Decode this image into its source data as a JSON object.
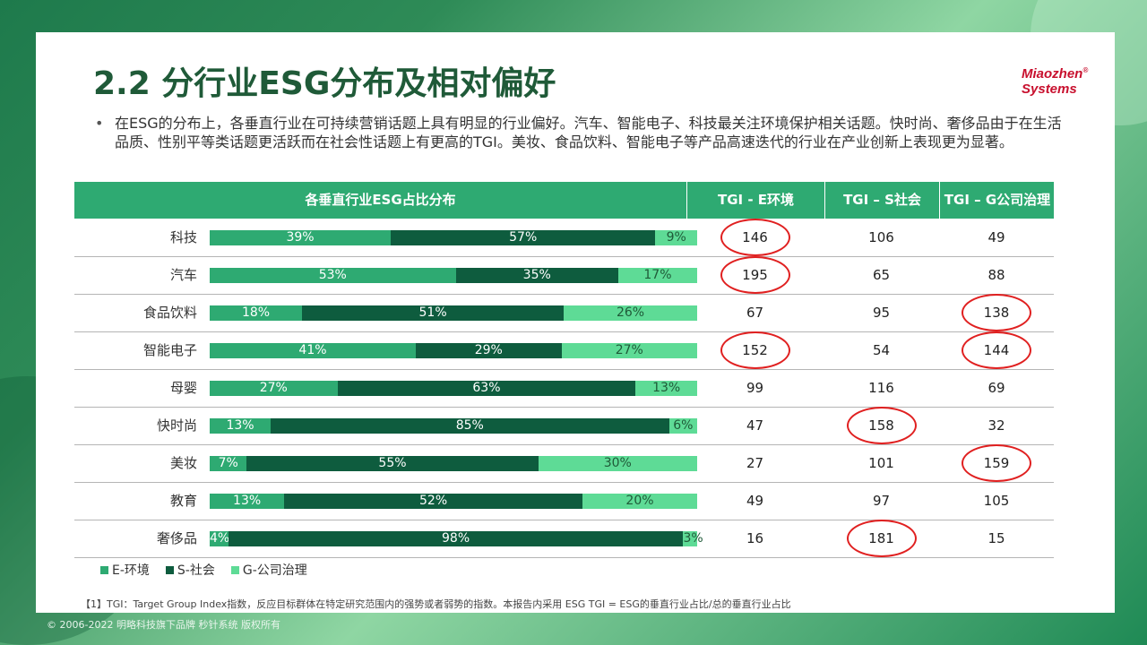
{
  "title": "2.2 分行业ESG分布及相对偏好",
  "logo": {
    "line1": "Miaozhen",
    "line2": "Systems",
    "mark": "®"
  },
  "bullet": "在ESG的分布上，各垂直行业在可持续营销话题上具有明显的行业偏好。汽车、智能电子、科技最关注环境保护相关话题。快时尚、奢侈品由于在生活品质、性别平等类话题更活跃而在社会性话题上有更高的TGI。美妆、食品饮料、智能电子等产品高速迭代的行业在产业创新上表现更为显著。",
  "headers": {
    "dist": "各垂直行业ESG占比分布",
    "tgi_e": "TGI - E环境",
    "tgi_s": "TGI – S社会",
    "tgi_g": "TGI – G公司治理"
  },
  "colors": {
    "e": "#2eaa72",
    "s": "#0e5c3e",
    "g": "#5edb96",
    "highlight": "#e02020"
  },
  "legend": [
    "E-环境",
    "S-社会",
    "G-公司治理"
  ],
  "chart_data": {
    "type": "bar",
    "orientation": "horizontal",
    "stacked": true,
    "percent_stacked": true,
    "categories": [
      "科技",
      "汽车",
      "食品饮料",
      "智能电子",
      "母婴",
      "快时尚",
      "美妆",
      "教育",
      "奢侈品"
    ],
    "series": [
      {
        "name": "E-环境",
        "values": [
          39,
          53,
          18,
          41,
          27,
          13,
          7,
          13,
          4
        ],
        "labels": [
          "39%",
          "53%",
          "18%",
          "41%",
          "27%",
          "13%",
          "7%",
          "13%",
          "4%"
        ]
      },
      {
        "name": "S-社会",
        "values": [
          57,
          35,
          51,
          29,
          63,
          85,
          55,
          52,
          98
        ],
        "labels": [
          "57%",
          "35%",
          "51%",
          "29%",
          "63%",
          "85%",
          "55%",
          "52%",
          "98%"
        ]
      },
      {
        "name": "G-公司治理",
        "values": [
          9,
          17,
          26,
          27,
          13,
          6,
          30,
          20,
          3
        ],
        "labels": [
          "9%",
          "17%",
          "26%",
          "27%",
          "13%",
          "6%",
          "30%",
          "20%",
          "3%"
        ]
      }
    ],
    "legend_position": "bottom-left",
    "table": {
      "columns": [
        "TGI - E环境",
        "TGI – S社会",
        "TGI – G公司治理"
      ],
      "rows": [
        [
          146,
          106,
          49
        ],
        [
          195,
          65,
          88
        ],
        [
          67,
          95,
          138
        ],
        [
          152,
          54,
          144
        ],
        [
          99,
          116,
          69
        ],
        [
          47,
          158,
          32
        ],
        [
          27,
          101,
          159
        ],
        [
          49,
          97,
          105
        ],
        [
          16,
          181,
          15
        ]
      ],
      "highlighted": [
        [
          0,
          0
        ],
        [
          1,
          0
        ],
        [
          2,
          2
        ],
        [
          3,
          0
        ],
        [
          3,
          2
        ],
        [
          5,
          1
        ],
        [
          6,
          2
        ],
        [
          8,
          1
        ]
      ]
    }
  },
  "footnote": "【1】TGI：Target Group Index指数，反应目标群体在特定研究范围内的强势或者弱势的指数。本报告内采用 ESG TGI = ESG的垂直行业占比/总的垂直行业占比",
  "copyright": "© 2006-2022 明略科技旗下品牌 秒针系统 版权所有"
}
